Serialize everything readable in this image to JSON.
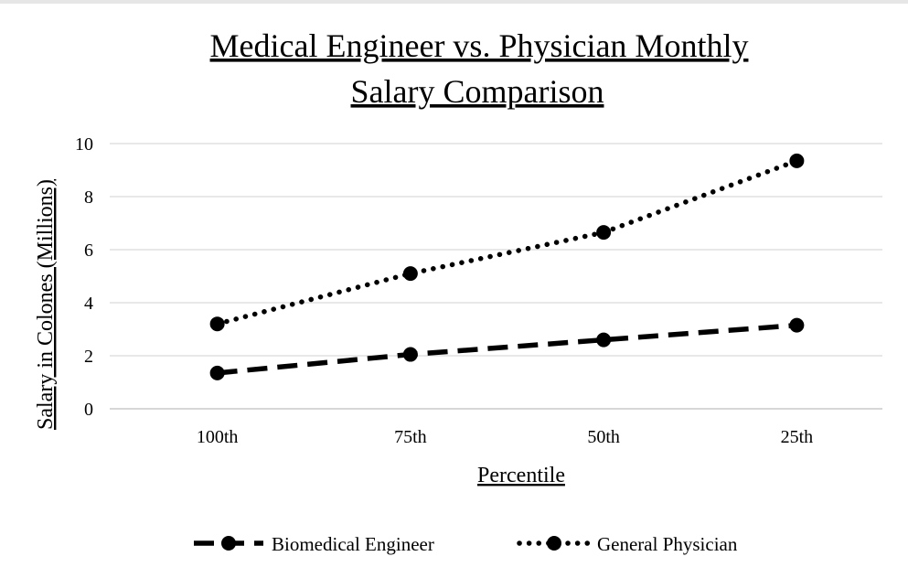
{
  "chart_data": {
    "type": "line",
    "title": "Medical Engineer vs. Physician Monthly Salary Comparison",
    "title_lines": [
      "Medical Engineer vs. Physician Monthly",
      "Salary Comparison"
    ],
    "xlabel": "Percentile",
    "ylabel": "Salary in Colones (Millions)",
    "categories": [
      "100th",
      "75th",
      "50th",
      "25th"
    ],
    "ylim": [
      0,
      10
    ],
    "yticks": [
      0,
      2,
      4,
      6,
      8,
      10
    ],
    "grid": true,
    "legend_position": "bottom",
    "series": [
      {
        "name": "Biomedical Engineer",
        "style": "dashed",
        "color": "#000000",
        "values": [
          1.35,
          2.05,
          2.6,
          3.15
        ]
      },
      {
        "name": "General Physician",
        "style": "dotted",
        "color": "#000000",
        "values": [
          3.2,
          5.1,
          6.65,
          9.35
        ]
      }
    ]
  }
}
